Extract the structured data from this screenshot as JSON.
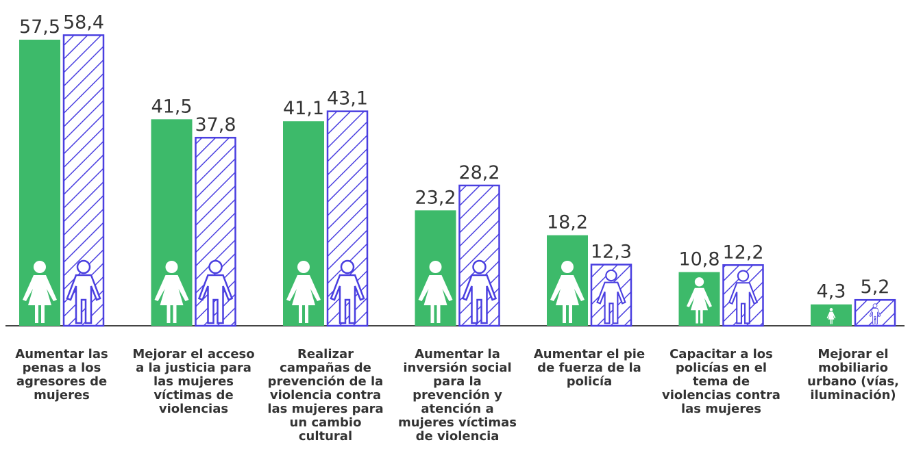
{
  "chart_data": {
    "type": "bar",
    "categories": [
      "Aumentar las penas a los agresores de mujeres",
      "Mejorar el acceso a la justicia para las mujeres víctimas de violencias",
      "Realizar campañas de prevención de la violencia contra las mujeres para un cambio cultural",
      "Aumentar la inversión social para la prevención y atención a mujeres víctimas de violencia",
      "Aumentar el pie de fuerza de la policía",
      "Capacitar a los policías en el tema de violencias contra las mujeres",
      "Mejorar el mobiliario urbano (vías, iluminación)"
    ],
    "series": [
      {
        "color": "#3dba6a",
        "values": [
          57.5,
          41.5,
          41.1,
          23.2,
          18.2,
          10.8,
          4.3
        ],
        "value_labels": [
          "57,5",
          "41,5",
          "41,1",
          "23,2",
          "18,2",
          "10,8",
          "4,3"
        ]
      },
      {
        "color": "#4a3fe0",
        "pattern": "hatch",
        "values": [
          58.4,
          37.8,
          43.1,
          28.2,
          12.3,
          12.2,
          5.2
        ],
        "value_labels": [
          "58,4",
          "37,8",
          "43,1",
          "28,2",
          "12,3",
          "12,2",
          "5,2"
        ]
      }
    ]
  }
}
